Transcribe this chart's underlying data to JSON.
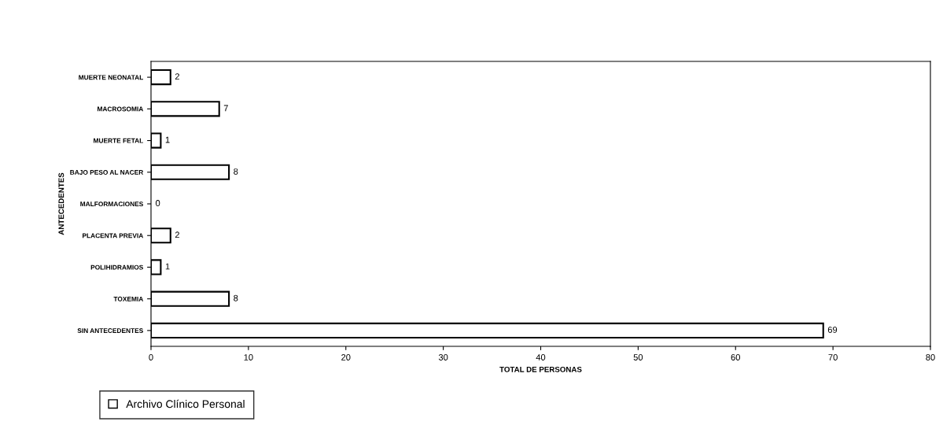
{
  "chart_data": {
    "type": "bar",
    "orientation": "horizontal",
    "xlabel": "TOTAL DE PERSONAS",
    "ylabel": "ANTECEDENTES",
    "categories": [
      "MUERTE NEONATAL",
      "MACROSOMIA",
      "MUERTE FETAL",
      "BAJO PESO AL NACER",
      "MALFORMACIONES",
      "PLACENTA PREVIA",
      "POLIHIDRAMIOS",
      "TOXEMIA",
      "SIN ANTECEDENTES"
    ],
    "series": [
      {
        "name": "Archivo Clínico Personal",
        "color": "#ffffff",
        "values": [
          2,
          7,
          1,
          8,
          0,
          2,
          1,
          8,
          69
        ]
      }
    ],
    "data_labels": true,
    "xlim": [
      0,
      80
    ],
    "xticks": [
      0,
      10,
      20,
      30,
      40,
      50,
      60,
      70,
      80
    ],
    "grid": false,
    "legend": "bottom left"
  }
}
